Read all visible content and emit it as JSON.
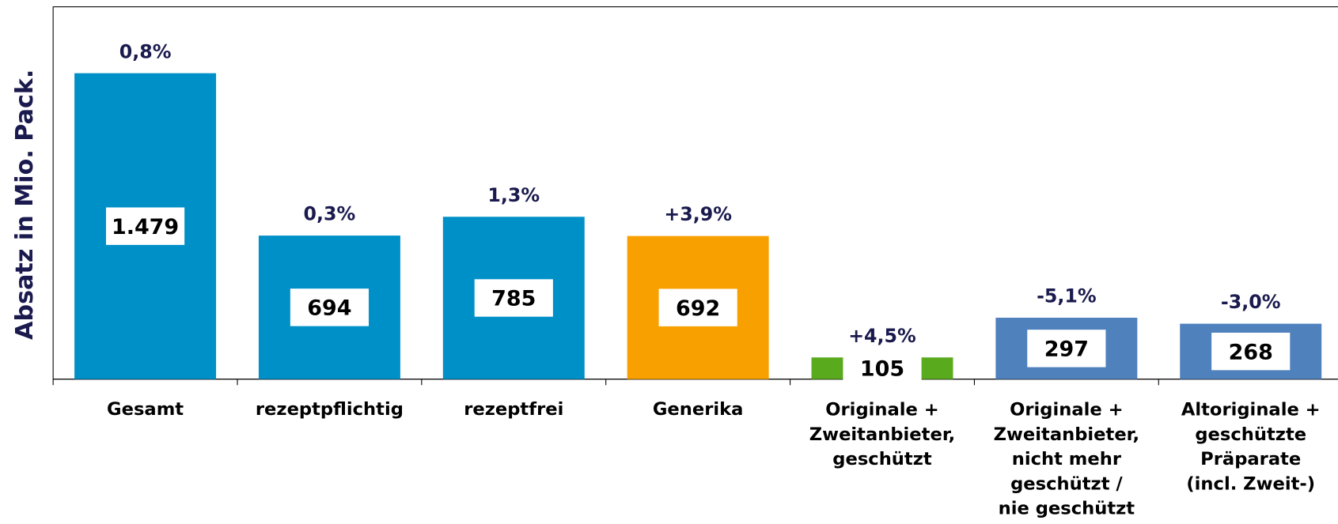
{
  "chart_data": {
    "type": "bar",
    "y_label": "Absatz in Mio. Pack.",
    "categories": [
      "Gesamt",
      "rezeptpflichtig",
      "rezeptfrei",
      "Generika",
      "Originale +\nZweitanbieter,\ngeschützt",
      "Originale +\nZweitanbieter,\nnicht mehr\ngeschützt /\nnie geschützt",
      "Altoriginale +\ngeschützte\nPräparate\n(incl. Zweit-)"
    ],
    "values": [
      1479,
      694,
      785,
      692,
      105,
      297,
      268
    ],
    "value_labels": [
      "1.479",
      "694",
      "785",
      "692",
      "105",
      "297",
      "268"
    ],
    "annotations": [
      "0,8%",
      "0,3%",
      "1,3%",
      "+3,9%",
      "+4,5%",
      "-5,1%",
      "-3,0%"
    ],
    "colors": [
      "#0090c8",
      "#0090c8",
      "#0090c8",
      "#f8a000",
      "#5aaa1e",
      "#4f81bd",
      "#4f81bd"
    ],
    "ylim": [
      0,
      1800
    ]
  }
}
